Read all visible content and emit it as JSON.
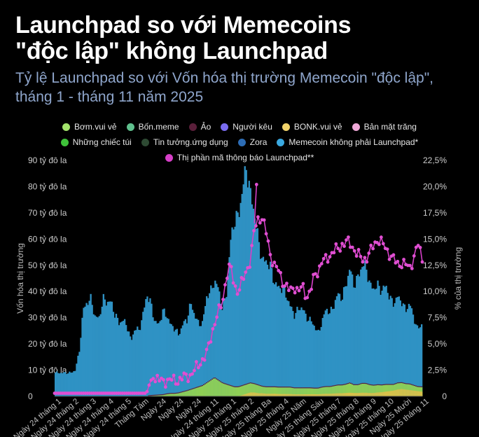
{
  "title_line1": "Launchpad so với Memecoins",
  "title_line2": "\"độc lập\" không Launchpad",
  "subtitle": "Tỷ lệ Launchpad so với Vốn hóa thị trường Memecoin \"độc lập\", tháng 1 - tháng 11 năm 2025",
  "legend": [
    {
      "label": "Bơm.vui vẻ",
      "color": "#a3e36b"
    },
    {
      "label": "Bốn.meme",
      "color": "#5fc08d"
    },
    {
      "label": "Ảo",
      "color": "#5a1f3a"
    },
    {
      "label": "Người kêu",
      "color": "#7a6cf0"
    },
    {
      "label": "BONK.vui vẻ",
      "color": "#f2d36a"
    },
    {
      "label": "Bản mặt trăng",
      "color": "#f0a8d8"
    },
    {
      "label": "Những chiếc túi",
      "color": "#3fc23a"
    },
    {
      "label": "Tin tưởng.ứng dụng",
      "color": "#2e4a33"
    },
    {
      "label": "Zora",
      "color": "#2d6db5"
    },
    {
      "label": "Memecoin không phải Launchpad*",
      "color": "#3aa9e0"
    },
    {
      "label": "Thị phần mã thông báo Launchpad**",
      "color": "#d63fc8"
    }
  ],
  "chart_data": {
    "type": "area",
    "ylabel": "Vốn hóa thị trường",
    "y2label": "% của thị trường",
    "ylim": [
      0,
      90
    ],
    "y2lim": [
      0,
      22.5
    ],
    "yticks": [
      "0",
      "10 tỷ đô la",
      "20 tỷ đô la",
      "30 tỷ đô la",
      "40 tỷ đô la",
      "50 tỷ đô la",
      "60 tỷ đô la",
      "70 tỷ đô la",
      "80 tỷ đô la",
      "90 tỷ đô la"
    ],
    "y2ticks": [
      "0",
      "2,5%",
      "5,0%",
      "7,5%",
      "10,0%",
      "12,5%",
      "15,0%",
      "17,5%",
      "20,0%",
      "22,5%"
    ],
    "x_ticks": [
      "Ngày 24 tháng 1",
      "Ngày 24 tháng 2",
      "Ngày 24 tháng 3",
      "Ngày 24 tháng 4",
      "Ngày 24 tháng 5",
      "Tháng Tám",
      "Ngày 24",
      "Ngày 24",
      "Ngày 24",
      "Ngày 24 tháng 11",
      "Ngày 25 tháng 1",
      "Ngày 25 tháng 2",
      "Ngày 25 tháng Ba",
      "Ngày 25 tháng 4",
      "Ngày 25 Năm",
      "Ngày 25 tháng Sáu",
      "Ngày 25 tháng 7",
      "Ngày 25 tháng 8",
      "Ngày 25 tháng 9",
      "Ngày 25 tháng 10",
      "Ngày 25 Mười",
      "Ngày 25 tháng 11"
    ],
    "series": [
      {
        "name": "Memecoin không phải Launchpad*",
        "axis": "left",
        "values": [
          9,
          9,
          9,
          9,
          9,
          10,
          17,
          33,
          36,
          37,
          30,
          30,
          37,
          36,
          36,
          31,
          28,
          29,
          27,
          21,
          26,
          25,
          31,
          39,
          35,
          28,
          27,
          32,
          30,
          26,
          25,
          22,
          26,
          27,
          33,
          28,
          24,
          24,
          33,
          34,
          37,
          35,
          28,
          35,
          55,
          64,
          65,
          75,
          83,
          72,
          65,
          55,
          48,
          48,
          46,
          40,
          38,
          38,
          35,
          31,
          28,
          30,
          31,
          27,
          26,
          24,
          21,
          25,
          30,
          28,
          31,
          35,
          33,
          38,
          44,
          38,
          41,
          45,
          45,
          38,
          37,
          38,
          36,
          38,
          33,
          31,
          33,
          31,
          28,
          31,
          26,
          22,
          24
        ]
      },
      {
        "name": "Bơm.vui vẻ",
        "axis": "left",
        "values": [
          0,
          0,
          0,
          0,
          0,
          0,
          0,
          0,
          0,
          0,
          0,
          0,
          0,
          0,
          0,
          0,
          0,
          0,
          0,
          0,
          0,
          0,
          0,
          0,
          0.2,
          0.3,
          0.4,
          0.5,
          0.8,
          1,
          1,
          1.2,
          1.6,
          2,
          2.5,
          3,
          3.5,
          4,
          5,
          6,
          7,
          6,
          5,
          4.5,
          4,
          3.5,
          3.5,
          3.5,
          3.5,
          3.5,
          3.2,
          3,
          2.5,
          2.5,
          2.5,
          2.5,
          2.5,
          2.5,
          2.5,
          2.5,
          2.3,
          2.3,
          2.3,
          2.3,
          2.3,
          2.2,
          2.2,
          2.5,
          2.6,
          2.6,
          2.8,
          3,
          3,
          3.2,
          3.6,
          3,
          3,
          3.4,
          3.4,
          3,
          2.8,
          2.8,
          2.6,
          2.6,
          2.4,
          2.2,
          2.4,
          2.3,
          2.1,
          2.2,
          1.9,
          1.6,
          1.7
        ]
      },
      {
        "name": "Bốn.meme",
        "axis": "left",
        "values": [
          0,
          0,
          0,
          0,
          0,
          0,
          0,
          0,
          0,
          0,
          0,
          0,
          0,
          0,
          0,
          0,
          0,
          0,
          0,
          0,
          0,
          0,
          0,
          0,
          0,
          0,
          0,
          0,
          0,
          0,
          0,
          0,
          0,
          0,
          0,
          0,
          0,
          0,
          0,
          0,
          0,
          0,
          0,
          0,
          0,
          0,
          0,
          0.5,
          1,
          1.5,
          1.5,
          1.2,
          1.2,
          1,
          1,
          1,
          0.9,
          0.9,
          0.9,
          0.9,
          0.8,
          0.8,
          0.8,
          0.8,
          0.8,
          0.8,
          0.8,
          0.9,
          1,
          1,
          1.1,
          1.2,
          1.2,
          1.3,
          1.4,
          1.3,
          1.3,
          1.4,
          1.4,
          1.3,
          1.3,
          1.5,
          1.6,
          1.8,
          2,
          2.2,
          2.6,
          2.8,
          2.6,
          2.4,
          2.2,
          2,
          1.8
        ]
      },
      {
        "name": "Thị phần mã thông báo Launchpad**",
        "axis": "right",
        "values": [
          0.3,
          0.3,
          0.3,
          0.3,
          0.3,
          0.3,
          0.3,
          0.3,
          0.3,
          0.3,
          0.3,
          0.3,
          0.3,
          0.3,
          0.3,
          0.3,
          0.3,
          0.3,
          0.3,
          0.3,
          0.3,
          0.3,
          0.3,
          0.3,
          1.5,
          1.8,
          1.6,
          1.4,
          1.5,
          1.6,
          1.5,
          1.5,
          1.8,
          1.9,
          2,
          2.5,
          3,
          3.5,
          4,
          5.5,
          7,
          8,
          9,
          11.5,
          12.5,
          10.5,
          10,
          11,
          12,
          13,
          16,
          17,
          17,
          15.5,
          13.5,
          12.5,
          12,
          11,
          10.5,
          10,
          10.5,
          10,
          10.5,
          9.5,
          10,
          11.5,
          12,
          13,
          13,
          13.5,
          14,
          14,
          14.5,
          14.8,
          14.5,
          14,
          13.5,
          13,
          13.2,
          13.8,
          14.5,
          15,
          14.6,
          14,
          13.5,
          13,
          12.5,
          12.8,
          12.5,
          12.2,
          13.5,
          14.5,
          13
        ]
      }
    ]
  }
}
